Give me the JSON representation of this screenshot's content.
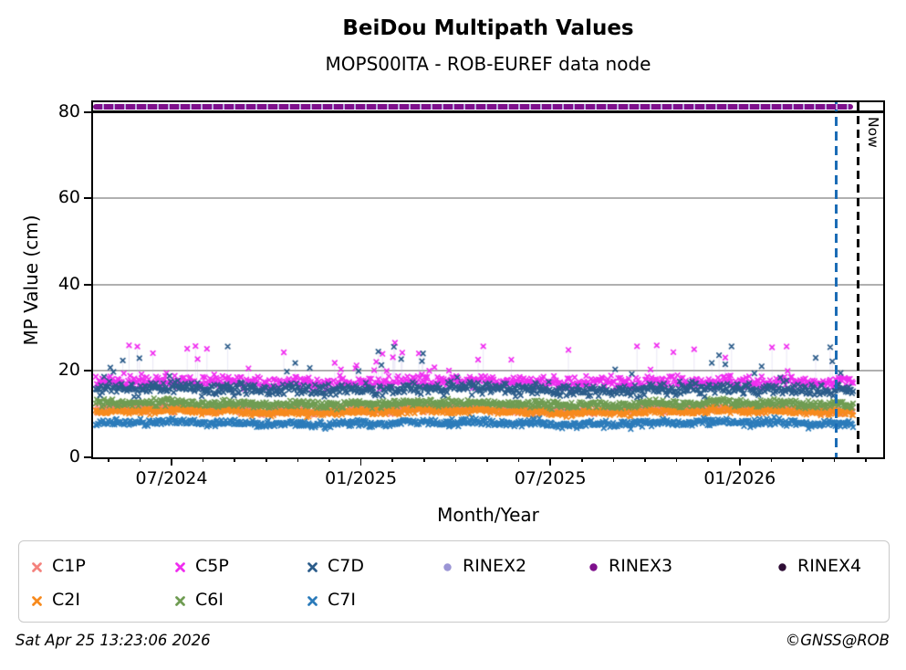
{
  "header": {
    "title": "BeiDou Multipath Values",
    "subtitle": "MOPS00ITA - ROB-EUREF data node"
  },
  "axes": {
    "ylabel": "MP Value (cm)",
    "xlabel": "Month/Year",
    "ytick_labels": [
      "0",
      "20",
      "40",
      "60",
      "80"
    ],
    "xtick_labels": [
      "07/2024",
      "01/2025",
      "07/2025",
      "01/2026"
    ],
    "now_label": "Now"
  },
  "legend": {
    "items": [
      {
        "label": "C1P",
        "marker": "x",
        "color": "#f4827d"
      },
      {
        "label": "C5P",
        "marker": "x",
        "color": "#f02df0"
      },
      {
        "label": "C7D",
        "marker": "x",
        "color": "#2b5c8a"
      },
      {
        "label": "RINEX2",
        "marker": "circle",
        "color": "#9b95d5"
      },
      {
        "label": "RINEX3",
        "marker": "circle",
        "color": "#7e108c"
      },
      {
        "label": "RINEX4",
        "marker": "circle",
        "color": "#2e0d35"
      }
    ],
    "items_row2": [
      {
        "label": "C2I",
        "marker": "x",
        "color": "#f78a1d"
      },
      {
        "label": "C6I",
        "marker": "x",
        "color": "#6f9c52"
      },
      {
        "label": "C7I",
        "marker": "x",
        "color": "#2b7bba"
      }
    ]
  },
  "footer": {
    "timestamp": "Sat Apr 25 13:23:06 2026",
    "copyright": "©GNSS@ROB"
  },
  "chart_data": {
    "type": "scatter",
    "title": "BeiDou Multipath Values",
    "subtitle": "MOPS00ITA - ROB-EUREF data node",
    "xlabel": "Month/Year",
    "ylabel": "MP Value (cm)",
    "ylim": [
      0,
      83
    ],
    "yticks": [
      0,
      20,
      40,
      60,
      80
    ],
    "grid": "horizontal gray lines at y=20,40,60",
    "x_major_ticks": [
      "07/2024",
      "01/2025",
      "07/2025",
      "01/2026"
    ],
    "x_minor_ticks": "monthly",
    "x_span": {
      "start": "2024-04",
      "end_of_data": "Now (2026-04-25)",
      "axis_end": "2026-05"
    },
    "series": [
      {
        "name": "C1P",
        "color": "#f4827d",
        "marker": "x",
        "typical": 11.0,
        "spread": 1.25,
        "min": 8.0,
        "max": 14.5
      },
      {
        "name": "C2I",
        "color": "#f78a1d",
        "marker": "x",
        "typical": 10.6,
        "spread": 1.15,
        "min": 8.0,
        "max": 13.5
      },
      {
        "name": "C5P",
        "color": "#f02df0",
        "marker": "x",
        "typical": 17.4,
        "spread": 2.1,
        "min": 13.0,
        "max": 27.0,
        "occasional_spikes_to": 27
      },
      {
        "name": "C6I",
        "color": "#6f9c52",
        "marker": "x",
        "typical": 12.4,
        "spread": 1.2,
        "min": 10.0,
        "max": 16.0
      },
      {
        "name": "C7D",
        "color": "#2b5c8a",
        "marker": "x",
        "typical": 15.8,
        "spread": 2.2,
        "min": 11.5,
        "max": 26.0,
        "occasional_spikes_to": 26
      },
      {
        "name": "C7I",
        "color": "#2b7bba",
        "marker": "x",
        "typical": 7.9,
        "spread": 1.2,
        "min": 5.5,
        "max": 11.0
      },
      {
        "name": "RINEX2",
        "color": "#9b95d5",
        "marker": "circle",
        "value": null
      },
      {
        "name": "RINEX3",
        "color": "#7e108c",
        "marker": "circle",
        "value": 81.2,
        "note": "continuous row of dots at ~81 cm from start of data to Now"
      },
      {
        "name": "RINEX4",
        "color": "#2e0d35",
        "marker": "circle",
        "value": null
      }
    ],
    "reference_lines": {
      "horizontal_black_line_y": 80,
      "vertical_blue_dashed": "early 04/2026 (just before Now)",
      "vertical_black_dashed": "Now"
    },
    "now_label": "Now"
  }
}
